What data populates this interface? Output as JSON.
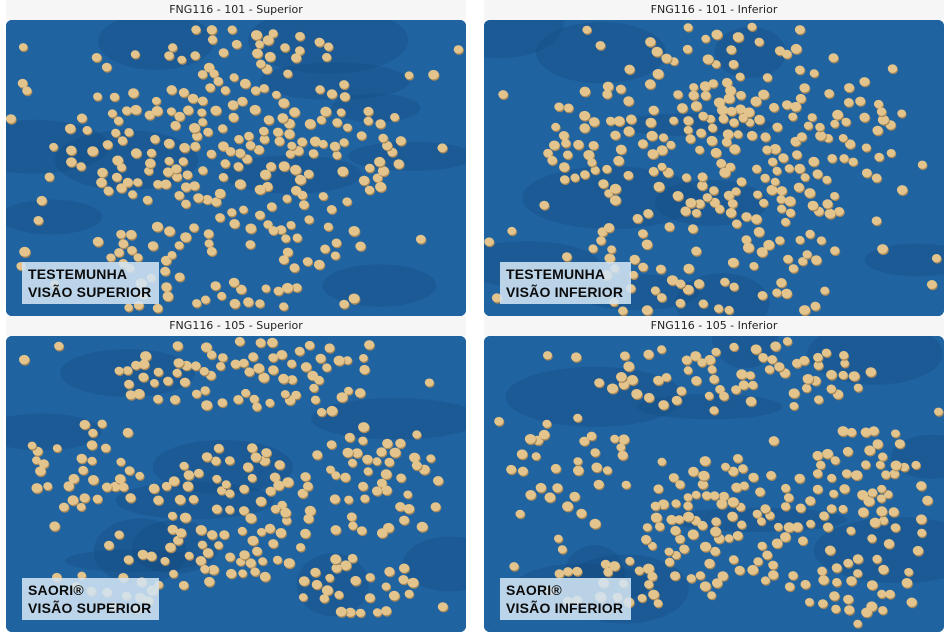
{
  "panels": [
    {
      "title": "FNG116 - 101 - Superior",
      "caption_line1": "TESTEMUNHA",
      "caption_line2": "VISÃO SUPERIOR"
    },
    {
      "title": "FNG116 - 101 - Inferior",
      "caption_line1": "TESTEMUNHA",
      "caption_line2": "VISÃO INFERIOR"
    },
    {
      "title": "FNG116 - 105 - Superior",
      "caption_line1": "SAORI®",
      "caption_line2": "VISÃO SUPERIOR"
    },
    {
      "title": "FNG116 - 105 - Inferior",
      "caption_line1": "SAORI®",
      "caption_line2": "VISÃO INFERIOR"
    }
  ],
  "colors": {
    "background_blue": "#1f63a1",
    "seed": "#e3c48d",
    "seed_shadow": "#a88857"
  }
}
